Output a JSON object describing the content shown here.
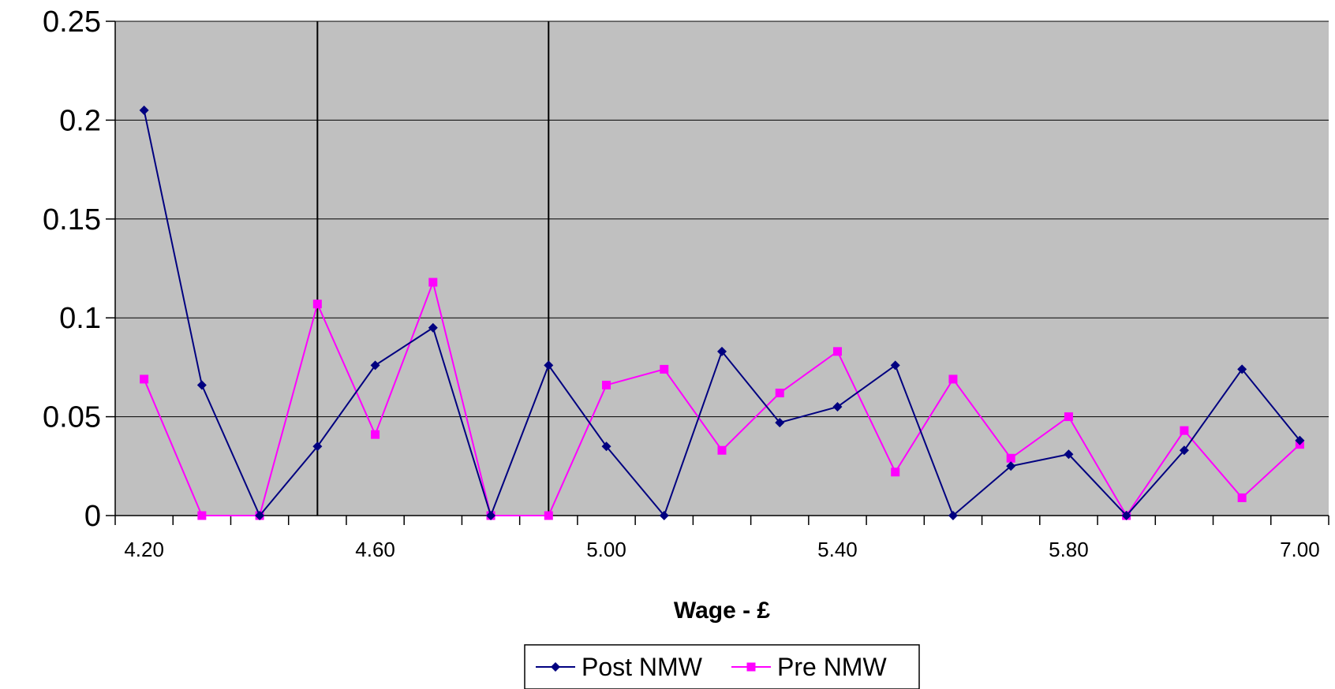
{
  "chart_data": {
    "type": "line",
    "title": "",
    "xlabel": "Wage - £",
    "ylabel": "",
    "ylim": [
      0,
      0.25
    ],
    "yticks": [
      "0",
      "0.05",
      "0.1",
      "0.15",
      "0.2",
      "0.25"
    ],
    "categories": [
      "4.20",
      "4.30",
      "4.40",
      "4.50",
      "4.60",
      "4.70",
      "4.80",
      "4.90",
      "5.00",
      "5.10",
      "5.20",
      "5.30",
      "5.40",
      "5.50",
      "5.60",
      "5.70",
      "5.80",
      "5.90",
      "6.00",
      "6.50",
      "7.00"
    ],
    "xtick_labels": [
      "4.20",
      "4.60",
      "5.00",
      "5.40",
      "5.80",
      "7.00"
    ],
    "xtick_label_indices": [
      0,
      4,
      8,
      12,
      16,
      20
    ],
    "vertical_lines_at_category_index": [
      3,
      7
    ],
    "grid": "horizontal",
    "plot_background": "#c0c0c0",
    "legend_position": "bottom",
    "series": [
      {
        "name": "Post NMW",
        "color": "#000080",
        "marker": "diamond",
        "values": [
          0.205,
          0.066,
          0.0,
          0.035,
          0.076,
          0.095,
          0.0,
          0.076,
          0.035,
          0.0,
          0.083,
          0.047,
          0.055,
          0.076,
          0.0,
          0.025,
          0.031,
          0.0,
          0.033,
          0.074,
          0.038
        ]
      },
      {
        "name": "Pre NMW",
        "color": "#ff00ff",
        "marker": "square",
        "values": [
          0.069,
          0.0,
          0.0,
          0.107,
          0.041,
          0.118,
          0.0,
          0.0,
          0.066,
          0.074,
          0.033,
          0.062,
          0.083,
          0.022,
          0.069,
          0.029,
          0.05,
          0.0,
          0.043,
          0.009,
          0.036
        ]
      }
    ]
  }
}
